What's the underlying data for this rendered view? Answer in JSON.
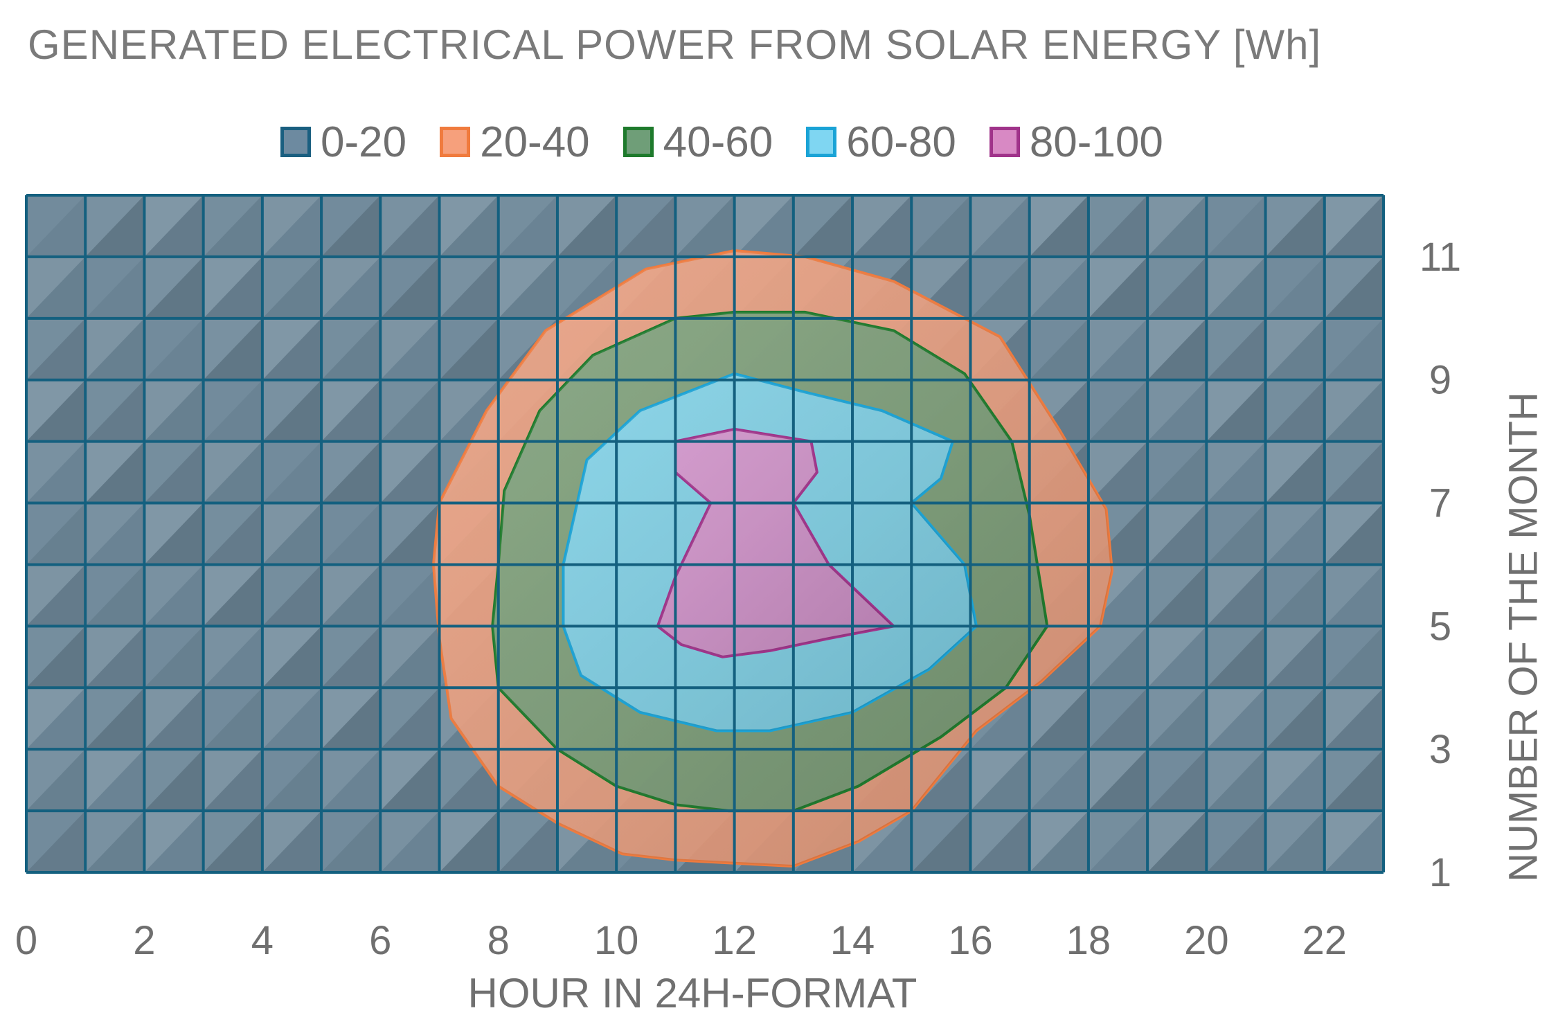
{
  "chart_data": {
    "type": "heatmap",
    "title": "GENERATED ELECTRICAL POWER FROM SOLAR ENERGY [Wh]",
    "xlabel": "HOUR IN 24H-FORMAT",
    "ylabel": "NUMBER OF THE MONTH",
    "xlim": [
      0,
      23
    ],
    "ylim": [
      1,
      12
    ],
    "x_ticks": [
      "0",
      "2",
      "4",
      "6",
      "8",
      "10",
      "12",
      "14",
      "16",
      "18",
      "20",
      "22"
    ],
    "y_ticks": [
      "1",
      "3",
      "5",
      "7",
      "9",
      "11"
    ],
    "legend_position": "top",
    "bands": [
      {
        "label": "0-20",
        "min": 0,
        "max": 20,
        "color": "#6d8aa0",
        "edge": "#1a5f80"
      },
      {
        "label": "20-40",
        "min": 20,
        "max": 40,
        "color": "#f6a07c",
        "edge": "#f07b3e"
      },
      {
        "label": "40-60",
        "min": 40,
        "max": 60,
        "color": "#6f9e78",
        "edge": "#1e7a2c"
      },
      {
        "label": "60-80",
        "min": 60,
        "max": 80,
        "color": "#7fd6f2",
        "edge": "#1aa3d6"
      },
      {
        "label": "80-100",
        "min": 80,
        "max": 100,
        "color": "#d889c4",
        "edge": "#a0338a"
      }
    ],
    "contours": [
      {
        "band": "20-40",
        "points": [
          [
            6.9,
            6.0
          ],
          [
            7.0,
            7.0
          ],
          [
            7.8,
            8.5
          ],
          [
            8.8,
            9.8
          ],
          [
            10.5,
            10.8
          ],
          [
            12.0,
            11.1
          ],
          [
            13.2,
            11.0
          ],
          [
            14.7,
            10.6
          ],
          [
            16.5,
            9.7
          ],
          [
            17.5,
            8.2
          ],
          [
            18.3,
            6.9
          ],
          [
            18.4,
            5.9
          ],
          [
            18.2,
            5.0
          ],
          [
            17.2,
            4.1
          ],
          [
            16.1,
            3.3
          ],
          [
            15.0,
            2.0
          ],
          [
            14.1,
            1.5
          ],
          [
            13.0,
            1.1
          ],
          [
            12.0,
            1.15
          ],
          [
            11.0,
            1.2
          ],
          [
            10.1,
            1.3
          ],
          [
            9.0,
            1.8
          ],
          [
            8.0,
            2.4
          ],
          [
            7.2,
            3.5
          ],
          [
            7.0,
            4.8
          ]
        ]
      },
      {
        "band": "40-60",
        "points": [
          [
            8.0,
            6.0
          ],
          [
            8.1,
            7.2
          ],
          [
            8.7,
            8.5
          ],
          [
            9.6,
            9.4
          ],
          [
            11.0,
            10.0
          ],
          [
            12.0,
            10.1
          ],
          [
            13.2,
            10.1
          ],
          [
            14.7,
            9.8
          ],
          [
            15.9,
            9.1
          ],
          [
            16.7,
            8.0
          ],
          [
            17.0,
            6.8
          ],
          [
            17.3,
            5.0
          ],
          [
            16.6,
            4.0
          ],
          [
            15.5,
            3.2
          ],
          [
            14.1,
            2.4
          ],
          [
            13.0,
            2.0
          ],
          [
            11.9,
            2.0
          ],
          [
            11.0,
            2.1
          ],
          [
            10.0,
            2.4
          ],
          [
            9.0,
            3.0
          ],
          [
            8.0,
            4.0
          ],
          [
            7.9,
            5.0
          ]
        ]
      },
      {
        "band": "60-80",
        "points": [
          [
            9.1,
            6.0
          ],
          [
            9.5,
            7.7
          ],
          [
            10.4,
            8.5
          ],
          [
            12.0,
            9.1
          ],
          [
            13.2,
            8.8
          ],
          [
            14.5,
            8.5
          ],
          [
            15.7,
            8.0
          ],
          [
            15.5,
            7.4
          ],
          [
            15.0,
            7.0
          ],
          [
            15.9,
            6.0
          ],
          [
            16.1,
            5.0
          ],
          [
            15.3,
            4.3
          ],
          [
            14.0,
            3.6
          ],
          [
            12.6,
            3.3
          ],
          [
            11.7,
            3.3
          ],
          [
            10.4,
            3.6
          ],
          [
            9.4,
            4.2
          ],
          [
            9.1,
            5.0
          ]
        ]
      },
      {
        "band": "80-100",
        "points": [
          [
            11.0,
            8.0
          ],
          [
            12.0,
            8.2
          ],
          [
            13.3,
            8.0
          ],
          [
            13.4,
            7.5
          ],
          [
            13.0,
            7.0
          ],
          [
            13.6,
            6.0
          ],
          [
            14.7,
            5.0
          ],
          [
            13.6,
            4.8
          ],
          [
            12.6,
            4.6
          ],
          [
            11.8,
            4.5
          ],
          [
            11.1,
            4.7
          ],
          [
            10.7,
            5.0
          ],
          [
            11.0,
            5.8
          ],
          [
            11.6,
            7.0
          ],
          [
            11.0,
            7.5
          ]
        ]
      }
    ]
  }
}
